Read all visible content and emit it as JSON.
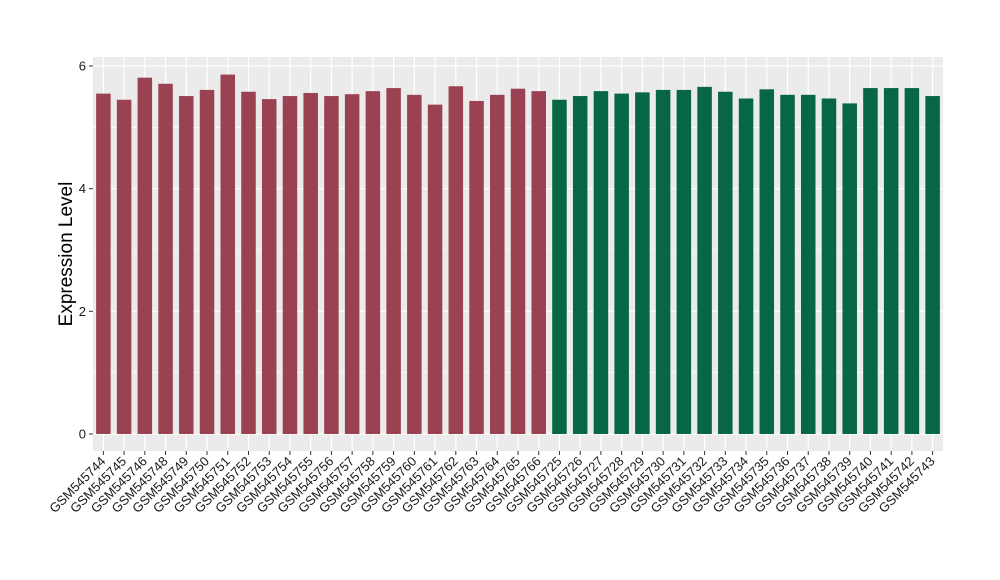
{
  "chart_data": {
    "type": "bar",
    "title": "",
    "xlabel": "",
    "ylabel": "Expression Level",
    "ylim": [
      0,
      6.15
    ],
    "yticks": [
      0,
      2,
      4,
      6
    ],
    "grid": true,
    "legend": "none",
    "colors": {
      "group_a": "#9a4252",
      "group_b": "#076644",
      "panel": "#ebebeb",
      "grid": "#ffffff"
    },
    "categories": [
      "GSM545744",
      "GSM545745",
      "GSM545746",
      "GSM545748",
      "GSM545749",
      "GSM545750",
      "GSM545751",
      "GSM545752",
      "GSM545753",
      "GSM545754",
      "GSM545755",
      "GSM545756",
      "GSM545757",
      "GSM545758",
      "GSM545759",
      "GSM545760",
      "GSM545761",
      "GSM545762",
      "GSM545763",
      "GSM545764",
      "GSM545765",
      "GSM545766",
      "GSM545725",
      "GSM545726",
      "GSM545727",
      "GSM545728",
      "GSM545729",
      "GSM545730",
      "GSM545731",
      "GSM545732",
      "GSM545733",
      "GSM545734",
      "GSM545735",
      "GSM545736",
      "GSM545737",
      "GSM545738",
      "GSM545739",
      "GSM545740",
      "GSM545741",
      "GSM545742",
      "GSM545743"
    ],
    "values": [
      5.55,
      5.45,
      5.81,
      5.71,
      5.51,
      5.61,
      5.86,
      5.58,
      5.46,
      5.51,
      5.56,
      5.51,
      5.54,
      5.59,
      5.64,
      5.53,
      5.37,
      5.67,
      5.43,
      5.53,
      5.63,
      5.59,
      5.45,
      5.51,
      5.59,
      5.55,
      5.57,
      5.61,
      5.61,
      5.66,
      5.58,
      5.47,
      5.62,
      5.53,
      5.53,
      5.47,
      5.39,
      5.64,
      5.64,
      5.64,
      5.51
    ],
    "groups": [
      "a",
      "a",
      "a",
      "a",
      "a",
      "a",
      "a",
      "a",
      "a",
      "a",
      "a",
      "a",
      "a",
      "a",
      "a",
      "a",
      "a",
      "a",
      "a",
      "a",
      "a",
      "a",
      "b",
      "b",
      "b",
      "b",
      "b",
      "b",
      "b",
      "b",
      "b",
      "b",
      "b",
      "b",
      "b",
      "b",
      "b",
      "b",
      "b",
      "b",
      "b"
    ]
  }
}
